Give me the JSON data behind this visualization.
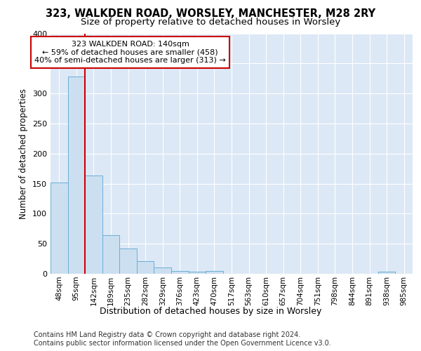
{
  "title1": "323, WALKDEN ROAD, WORSLEY, MANCHESTER, M28 2RY",
  "title2": "Size of property relative to detached houses in Worsley",
  "xlabel": "Distribution of detached houses by size in Worsley",
  "ylabel": "Number of detached properties",
  "footer1": "Contains HM Land Registry data © Crown copyright and database right 2024.",
  "footer2": "Contains public sector information licensed under the Open Government Licence v3.0.",
  "bin_labels": [
    "48sqm",
    "95sqm",
    "142sqm",
    "189sqm",
    "235sqm",
    "282sqm",
    "329sqm",
    "376sqm",
    "423sqm",
    "470sqm",
    "517sqm",
    "563sqm",
    "610sqm",
    "657sqm",
    "704sqm",
    "751sqm",
    "798sqm",
    "844sqm",
    "891sqm",
    "938sqm",
    "985sqm"
  ],
  "bar_values": [
    152,
    328,
    164,
    64,
    42,
    21,
    10,
    5,
    4,
    5,
    0,
    0,
    0,
    0,
    0,
    0,
    0,
    0,
    0,
    4,
    0
  ],
  "bar_color": "#ccdff0",
  "bar_edge_color": "#6aaed6",
  "background_color": "#dce8f5",
  "grid_color": "#ffffff",
  "fig_background": "#ffffff",
  "red_line_color": "#cc0000",
  "red_line_x": 2.0,
  "annotation_line1": "323 WALKDEN ROAD: 140sqm",
  "annotation_line2": "← 59% of detached houses are smaller (458)",
  "annotation_line3": "40% of semi-detached houses are larger (313) →",
  "annotation_box_facecolor": "#ffffff",
  "annotation_box_edgecolor": "#cc0000",
  "ylim": [
    0,
    400
  ],
  "yticks": [
    0,
    50,
    100,
    150,
    200,
    250,
    300,
    350,
    400
  ],
  "title1_fontsize": 10.5,
  "title2_fontsize": 9.5,
  "xlabel_fontsize": 9,
  "ylabel_fontsize": 8.5,
  "tick_fontsize": 8,
  "xtick_fontsize": 7.5,
  "annotation_fontsize": 8,
  "footer_fontsize": 7
}
